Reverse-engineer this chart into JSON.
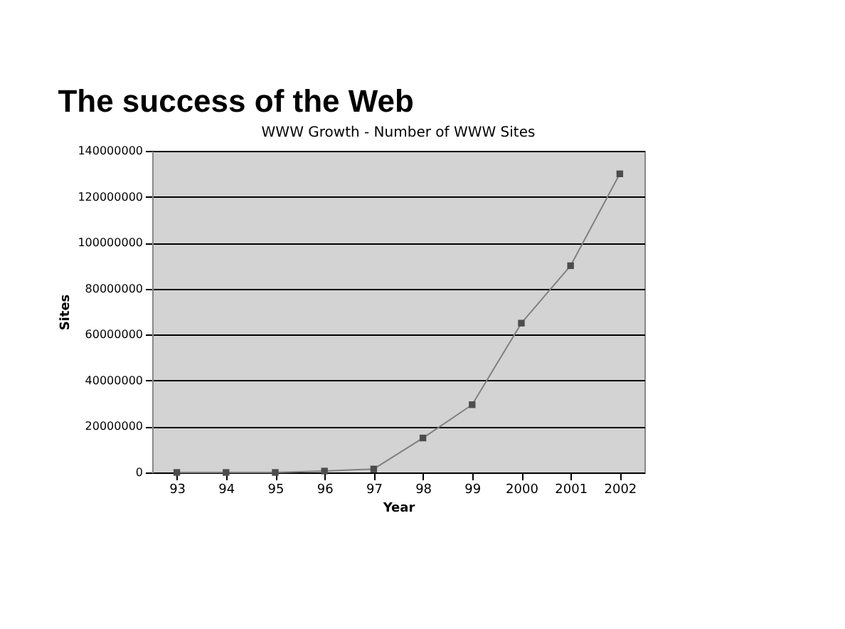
{
  "chart_data": {
    "type": "line",
    "title": "The success of the Web",
    "subtitle": "WWW Growth - Number of  WWW Sites",
    "xlabel": "Year",
    "ylabel": "Sites",
    "categories": [
      "93",
      "94",
      "95",
      "96",
      "97",
      "98",
      "99",
      "2000",
      "2001",
      "2002"
    ],
    "series": [
      {
        "color": "#4d4d4d",
        "values": [
          0,
          0,
          0,
          600000,
          1500000,
          15000000,
          29500000,
          65000000,
          90000000,
          130000000
        ]
      }
    ],
    "ylim": [
      0,
      140000000
    ],
    "yticks": [
      0,
      20000000,
      40000000,
      60000000,
      80000000,
      100000000,
      120000000,
      140000000
    ],
    "grid": "y",
    "marker": "square",
    "line_style": "solid"
  }
}
